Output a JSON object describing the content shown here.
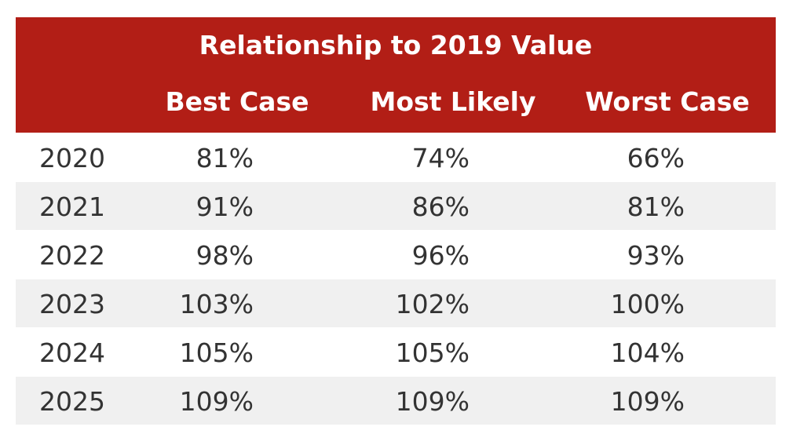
{
  "table": {
    "title": "Relationship to 2019 Value",
    "columns": [
      "Best Case",
      "Most Likely",
      "Worst Case"
    ],
    "rows": [
      [
        "2020",
        "81%",
        "74%",
        "66%"
      ],
      [
        "2021",
        "91%",
        "86%",
        "81%"
      ],
      [
        "2022",
        "98%",
        "96%",
        "93%"
      ],
      [
        "2023",
        "103%",
        "102%",
        "100%"
      ],
      [
        "2024",
        "105%",
        "105%",
        "104%"
      ],
      [
        "2025",
        "109%",
        "109%",
        "109%"
      ]
    ]
  }
}
